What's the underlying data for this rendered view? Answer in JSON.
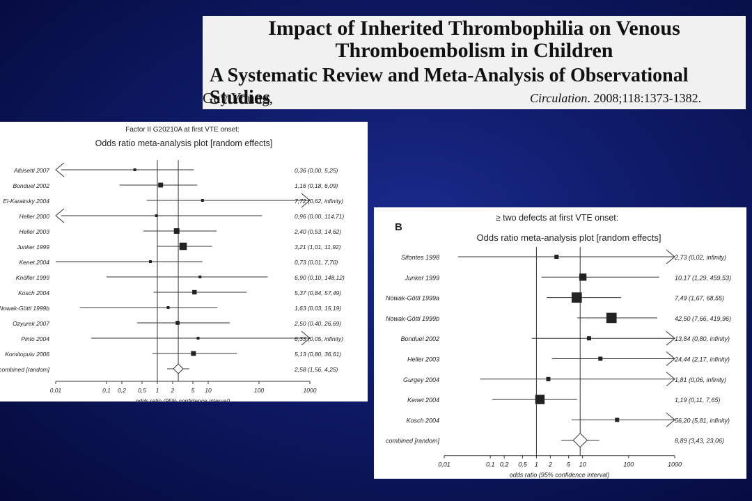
{
  "header": {
    "title_line1": "Impact of Inherited Thrombophilia on Venous",
    "title_line2": "Thromboembolism in Children",
    "subtitle": "A Systematic Review and Meta-Analysis of Observational Studies",
    "author": "Guy Young,",
    "journal": "Circulation",
    "citation_rest": ". 2008;118:1373-1382."
  },
  "chart_data": [
    {
      "type": "forest",
      "title_line1": "Factor II G20210A at first VTE onset:",
      "title_line2": "Odds ratio meta-analysis plot [random effects]",
      "xlabel": "odds ratio (95% confidence interval)",
      "x_scale": "log",
      "xlim": [
        0.01,
        1000
      ],
      "x_ticks": [
        "0,01",
        "0,1",
        "0,2",
        "0,5",
        "1",
        "2",
        "5",
        "10",
        "100",
        "1000"
      ],
      "x_tick_values": [
        0.01,
        0.1,
        0.2,
        0.5,
        1,
        2,
        5,
        10,
        100,
        1000
      ],
      "pooled_estimate": 2.58,
      "studies": [
        {
          "name": "Albisetti 2007",
          "or": 0.36,
          "lo": 0.001,
          "hi": 5.25,
          "left_arrow": true,
          "right_arrow": false,
          "weight": 1,
          "label": "0,36 (0,00, 5,25)"
        },
        {
          "name": "Bonduel 2002",
          "or": 1.16,
          "lo": 0.18,
          "hi": 6.09,
          "left_arrow": false,
          "right_arrow": false,
          "weight": 3,
          "label": "1,16 (0,18, 6,09)"
        },
        {
          "name": "El-Karaksky 2004",
          "or": 7.72,
          "lo": 0.62,
          "hi": 1000,
          "left_arrow": false,
          "right_arrow": true,
          "weight": 1,
          "label": "7,72 (0,62, infinity)"
        },
        {
          "name": "Heller 2000",
          "or": 0.96,
          "lo": 0.001,
          "hi": 114.71,
          "left_arrow": true,
          "right_arrow": false,
          "weight": 0.6,
          "label": "0,96 (0,00, 114,71)"
        },
        {
          "name": "Heller 2003",
          "or": 2.4,
          "lo": 0.53,
          "hi": 14.62,
          "left_arrow": false,
          "right_arrow": false,
          "weight": 4,
          "label": "2,40 (0,53, 14,62)"
        },
        {
          "name": "Junker 1999",
          "or": 3.21,
          "lo": 1.01,
          "hi": 11.92,
          "left_arrow": false,
          "right_arrow": false,
          "weight": 7,
          "label": "3,21 (1,01, 11,92)"
        },
        {
          "name": "Kenet 2004",
          "or": 0.73,
          "lo": 0.01,
          "hi": 7.7,
          "left_arrow": false,
          "right_arrow": false,
          "weight": 1,
          "label": "0,73 (0,01, 7,70)"
        },
        {
          "name": "Knöfler 1999",
          "or": 6.9,
          "lo": 0.1,
          "hi": 148.12,
          "left_arrow": false,
          "right_arrow": false,
          "weight": 1,
          "label": "6,90 (0,10, 148,12)"
        },
        {
          "name": "Kosch 2004",
          "or": 5.37,
          "lo": 0.84,
          "hi": 57.49,
          "left_arrow": false,
          "right_arrow": false,
          "weight": 2.5,
          "label": "5,37 (0,84, 57,49)"
        },
        {
          "name": "Nowak-Göttl 1999b",
          "or": 1.63,
          "lo": 0.03,
          "hi": 15.19,
          "left_arrow": false,
          "right_arrow": false,
          "weight": 1,
          "label": "1,63 (0,03, 15,19)"
        },
        {
          "name": "Özyurek 2007",
          "or": 2.5,
          "lo": 0.4,
          "hi": 26.69,
          "left_arrow": false,
          "right_arrow": false,
          "weight": 2,
          "label": "2,50 (0,40, 26,69)"
        },
        {
          "name": "Pinto 2004",
          "or": 6.33,
          "lo": 0.05,
          "hi": 1000,
          "left_arrow": false,
          "right_arrow": true,
          "weight": 0.6,
          "label": "6,33 (0,05, infinity)"
        },
        {
          "name": "Komitopulu 2006",
          "or": 5.13,
          "lo": 0.8,
          "hi": 36.61,
          "left_arrow": false,
          "right_arrow": false,
          "weight": 3,
          "label": "5,13 (0,80, 36,61)"
        }
      ],
      "combined": {
        "name": "combined [random]",
        "or": 2.58,
        "lo": 1.56,
        "hi": 4.25,
        "label": "2,58 (1,56, 4,25)"
      }
    },
    {
      "type": "forest",
      "panel_letter": "B",
      "title_line1": "≥ two defects at first VTE onset:",
      "title_line2": "Odds ratio meta-analysis plot [random effects]",
      "xlabel": "odds ratio (95% confidence interval)",
      "x_scale": "log",
      "xlim": [
        0.01,
        1000
      ],
      "x_ticks": [
        "0,01",
        "0,1",
        "0,2",
        "0,5",
        "1",
        "2",
        "5",
        "10",
        "100",
        "1000"
      ],
      "x_tick_values": [
        0.01,
        0.1,
        0.2,
        0.5,
        1,
        2,
        5,
        10,
        100,
        1000
      ],
      "pooled_estimate": 8.89,
      "studies": [
        {
          "name": "Sifontes 1998",
          "or": 2.73,
          "lo": 0.02,
          "hi": 1000,
          "left_arrow": false,
          "right_arrow": true,
          "weight": 1,
          "label": "2,73 (0,02, infinity)"
        },
        {
          "name": "Junker 1999",
          "or": 10.17,
          "lo": 1.29,
          "hi": 459.53,
          "left_arrow": false,
          "right_arrow": false,
          "weight": 3,
          "label": "10,17 (1,29, 459,53)"
        },
        {
          "name": "Nowak-Göttl 1999a",
          "or": 7.49,
          "lo": 1.67,
          "hi": 68.55,
          "left_arrow": false,
          "right_arrow": false,
          "weight": 6,
          "label": "7,49 (1,67, 68,55)"
        },
        {
          "name": "Nowak-Göttl 1999b",
          "or": 42.5,
          "lo": 7.66,
          "hi": 419.96,
          "left_arrow": false,
          "right_arrow": false,
          "weight": 6,
          "label": "42,50 (7,66, 419,96)"
        },
        {
          "name": "Bonduel 2002",
          "or": 13.84,
          "lo": 0.8,
          "hi": 1000,
          "left_arrow": false,
          "right_arrow": true,
          "weight": 1,
          "label": "13,84 (0,80, infinity)"
        },
        {
          "name": "Heller 2003",
          "or": 24.44,
          "lo": 2.17,
          "hi": 1000,
          "left_arrow": false,
          "right_arrow": true,
          "weight": 1,
          "label": "24,44 (2,17, infinity)"
        },
        {
          "name": "Gurgey 2004",
          "or": 1.81,
          "lo": 0.06,
          "hi": 1000,
          "left_arrow": false,
          "right_arrow": true,
          "weight": 1,
          "label": "1,81 (0,06, infinity)"
        },
        {
          "name": "Kenet 2004",
          "or": 1.19,
          "lo": 0.11,
          "hi": 7.65,
          "left_arrow": false,
          "right_arrow": false,
          "weight": 5,
          "label": "1,19 (0,11, 7,65)"
        },
        {
          "name": "Kosch 2004",
          "or": 56.2,
          "lo": 5.81,
          "hi": 1000,
          "left_arrow": false,
          "right_arrow": true,
          "weight": 1,
          "label": "56,20 (5,81, infinity)"
        }
      ],
      "combined": {
        "name": "combined [random]",
        "or": 8.89,
        "lo": 3.43,
        "hi": 23.06,
        "label": "8,89 (3,43, 23,06)"
      }
    }
  ]
}
